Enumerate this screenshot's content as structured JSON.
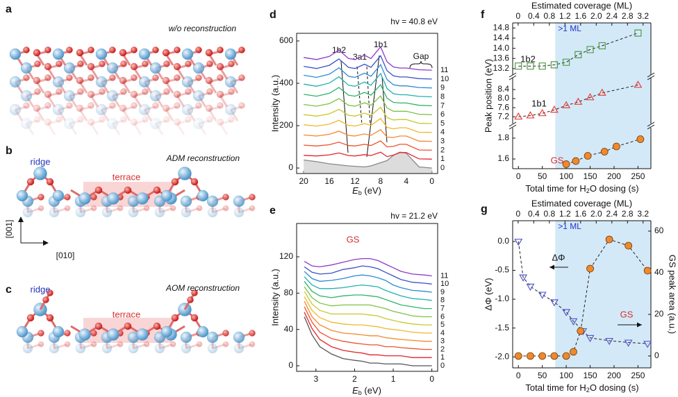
{
  "labels": [
    "a",
    "b",
    "c",
    "d",
    "e",
    "f",
    "g"
  ],
  "structures": [
    {
      "title": "w/o reconstruction"
    },
    {
      "title": "ADM reconstruction",
      "ridge": "ridge",
      "terrace": "terrace",
      "axes": [
        "[001]",
        "[010]"
      ]
    },
    {
      "title": "AOM reconstruction",
      "ridge": "ridge",
      "terrace": "terrace"
    }
  ],
  "chart_data": [
    {
      "type": "line",
      "annotation": "hv = 40.8 eV",
      "peaks": [
        "1b2",
        "3a1",
        "1b1",
        "Gap"
      ],
      "xlabel": [
        "E",
        "b",
        " (eV)"
      ],
      "ylabel": "Intensity (a.u.)",
      "x": [
        20,
        18,
        16,
        14.5,
        13,
        12,
        10.5,
        9.5,
        8,
        7,
        6,
        5,
        4,
        2,
        0
      ],
      "xlim": [
        21.1,
        -0.9
      ],
      "xticks": [
        20,
        16,
        12,
        8,
        4,
        0
      ],
      "ylim": [
        -26,
        636
      ],
      "yticks": [
        0,
        200,
        400,
        600
      ],
      "series": [
        {
          "name": "0",
          "color": "#888888",
          "fill": true,
          "values": [
            38,
            30,
            20,
            15,
            10,
            8,
            5,
            10,
            25,
            35,
            60,
            75,
            70,
            5,
            0
          ]
        },
        {
          "name": "1",
          "color": "#e3242b",
          "values": [
            60,
            57,
            62,
            71,
            59,
            57,
            63,
            59,
            75,
            54,
            61,
            73,
            73,
            43,
            42
          ]
        },
        {
          "name": "2",
          "color": "#f0502a",
          "values": [
            108,
            104,
            110,
            122,
            106,
            104,
            112,
            106,
            128,
            100,
            102,
            112,
            112,
            85,
            84
          ]
        },
        {
          "name": "3",
          "color": "#f5872a",
          "values": [
            156,
            151,
            159,
            174,
            154,
            151,
            161,
            154,
            181,
            146,
            144,
            151,
            151,
            127,
            126
          ]
        },
        {
          "name": "4",
          "color": "#f2b62a",
          "values": [
            204,
            198,
            207,
            225,
            201,
            198,
            210,
            201,
            234,
            192,
            185,
            190,
            190,
            169,
            168
          ]
        },
        {
          "name": "5",
          "color": "#c8c82a",
          "values": [
            252,
            245,
            256,
            277,
            249,
            245,
            259,
            249,
            287,
            238,
            227,
            229,
            229,
            211,
            210
          ]
        },
        {
          "name": "6",
          "color": "#7cc242",
          "values": [
            300,
            292,
            304,
            328,
            296,
            292,
            308,
            296,
            340,
            284,
            268,
            268,
            268,
            254,
            252
          ]
        },
        {
          "name": "7",
          "color": "#2db36a",
          "values": [
            348,
            339,
            353,
            380,
            344,
            339,
            357,
            344,
            393,
            330,
            310,
            307,
            307,
            296,
            294
          ]
        },
        {
          "name": "8",
          "color": "#20b0b0",
          "values": [
            396,
            386,
            401,
            431,
            391,
            386,
            406,
            391,
            446,
            376,
            351,
            346,
            346,
            338,
            336
          ]
        },
        {
          "name": "9",
          "color": "#2a8ad8",
          "values": [
            438,
            428,
            443,
            473,
            433,
            428,
            448,
            433,
            488,
            418,
            393,
            388,
            388,
            380,
            378
          ]
        },
        {
          "name": "10",
          "color": "#3a50c8",
          "values": [
            480,
            470,
            485,
            515,
            475,
            470,
            490,
            475,
            530,
            460,
            435,
            430,
            430,
            422,
            420
          ]
        },
        {
          "name": "11",
          "color": "#8a3ac8",
          "values": [
            522,
            512,
            527,
            557,
            517,
            512,
            532,
            517,
            572,
            502,
            477,
            472,
            472,
            464,
            462
          ]
        }
      ]
    },
    {
      "type": "line",
      "annotation": "hv = 21.2 eV",
      "peaks": [
        "GS"
      ],
      "xlabel": [
        "E",
        "b",
        " (eV)"
      ],
      "ylabel": "Intensity (a.u.)",
      "x": [
        3.3,
        3.1,
        2.9,
        2.6,
        2.3,
        2,
        1.8,
        1.6,
        1.4,
        1.2,
        1,
        0.8,
        0.5,
        0.2,
        0
      ],
      "xlim": [
        3.5,
        -0.15
      ],
      "xticks": [
        3,
        2,
        1,
        0
      ],
      "ylim": [
        -6.1,
        156.7
      ],
      "yticks": [
        0,
        40,
        80,
        120
      ],
      "series": [
        {
          "name": "0",
          "color": "#555555",
          "values": [
            54,
            34,
            21,
            13,
            8,
            6,
            5,
            3,
            3,
            2,
            2,
            2,
            0,
            0,
            0
          ]
        },
        {
          "name": "1",
          "color": "#e3242b",
          "values": [
            59,
            41,
            29,
            21,
            17,
            15,
            14,
            12,
            12,
            11,
            11,
            11,
            9,
            9,
            9
          ]
        },
        {
          "name": "2",
          "color": "#f0502a",
          "values": [
            65,
            48,
            37,
            30,
            27,
            25,
            24,
            23,
            23,
            21,
            21,
            20,
            19,
            18,
            18
          ]
        },
        {
          "name": "3",
          "color": "#f5872a",
          "values": [
            71,
            54,
            45,
            39,
            36,
            35,
            34,
            33,
            33,
            31,
            30,
            29,
            28,
            27,
            27
          ]
        },
        {
          "name": "4",
          "color": "#f2b62a",
          "values": [
            76,
            61,
            53,
            48,
            46,
            45,
            45,
            44,
            43,
            41,
            40,
            39,
            37,
            36,
            36
          ]
        },
        {
          "name": "5",
          "color": "#c8c82a",
          "values": [
            82,
            68,
            61,
            57,
            57,
            57,
            57,
            56,
            55,
            52,
            50,
            48,
            46,
            45,
            45
          ]
        },
        {
          "name": "6",
          "color": "#7cc242",
          "values": [
            87,
            75,
            69,
            66,
            67,
            67,
            67,
            67,
            65,
            63,
            60,
            58,
            55,
            54,
            54
          ]
        },
        {
          "name": "7",
          "color": "#2db36a",
          "values": [
            93,
            82,
            77,
            75,
            77,
            78,
            78,
            77,
            76,
            73,
            70,
            67,
            65,
            63,
            63
          ]
        },
        {
          "name": "8",
          "color": "#20b0b0",
          "values": [
            98,
            89,
            85,
            85,
            86,
            88,
            89,
            88,
            87,
            83,
            80,
            77,
            74,
            73,
            72
          ]
        },
        {
          "name": "9",
          "color": "#2a8ad8",
          "values": [
            104,
            96,
            93,
            94,
            96,
            99,
            100,
            99,
            97,
            94,
            89,
            86,
            83,
            82,
            81
          ]
        },
        {
          "name": "10",
          "color": "#3a50c8",
          "values": [
            109,
            103,
            101,
            102,
            106,
            108,
            110,
            109,
            107,
            103,
            99,
            95,
            92,
            91,
            90
          ]
        },
        {
          "name": "11",
          "color": "#8a3ac8",
          "values": [
            115,
            110,
            109,
            111,
            114,
            117,
            118,
            118,
            116,
            112,
            108,
            104,
            101,
            100,
            99
          ]
        }
      ]
    },
    {
      "type": "scatter",
      "x2label": "Estimated coverage (ML)",
      "xlabel": [
        "Total time for H",
        "2",
        "O dosing (s)"
      ],
      "ylabel": "Peak position (eV)",
      "xlim": [
        -12,
        277
      ],
      "xticks": [
        0,
        50,
        100,
        150,
        200,
        250
      ],
      "x2lim": [
        -0.14,
        3.4
      ],
      "x2ticks": [
        0,
        0.4,
        0.8,
        1.2,
        1.6,
        {
          "value": 2,
          "label": "2.0"
        },
        2.4,
        2.8,
        3.2
      ],
      "shade": {
        "label": ">1 ML",
        "from": 77
      },
      "panels": [
        {
          "ylim": [
            12.95,
            15.0
          ],
          "yticks": [
            13.2,
            13.6,
            {
              "value": 14,
              "label": "14.0"
            },
            14.4,
            14.8
          ]
        },
        {
          "ylim": [
            6.9,
            8.92
          ],
          "yticks": [
            7.2,
            7.6,
            {
              "value": 8,
              "label": "8.0"
            },
            8.4
          ]
        },
        {
          "ylim": [
            1.507,
            1.9
          ],
          "yticks": [
            1.6,
            1.8
          ]
        }
      ],
      "series": [
        {
          "name": "1b2",
          "color": "#4f9a48",
          "marker": "square",
          "panel": 0,
          "x": [
            0,
            25,
            50,
            75,
            100,
            125,
            150,
            175,
            250
          ],
          "values": [
            13.3,
            13.3,
            13.3,
            13.35,
            13.45,
            13.75,
            13.95,
            14.1,
            14.6
          ]
        },
        {
          "name": "1b1",
          "color": "#e8403a",
          "marker": "triangle",
          "panel": 1,
          "x": [
            0,
            25,
            50,
            75,
            100,
            125,
            150,
            175,
            250
          ],
          "values": [
            7.2,
            7.25,
            7.35,
            7.5,
            7.7,
            7.85,
            8.05,
            8.25,
            8.6
          ]
        },
        {
          "name": "GS",
          "color": "#f0892a",
          "marker": "circle",
          "panel": 2,
          "x": [
            100,
            120,
            145,
            180,
            205,
            255
          ],
          "values": [
            1.55,
            1.58,
            1.63,
            1.67,
            1.72,
            1.79
          ]
        }
      ]
    },
    {
      "type": "scatter",
      "x2label": "Estimated coverage (ML)",
      "xlabel": [
        "Total time for H",
        "2",
        "O dosing (s)"
      ],
      "ylabel": "ΔΦ (eV)",
      "y2label": "GS peak area (a.u.)",
      "xlim": [
        -12,
        277
      ],
      "xticks": [
        0,
        50,
        100,
        150,
        200,
        250
      ],
      "x2lim": [
        -0.14,
        3.4
      ],
      "x2ticks": [
        0,
        0.4,
        0.8,
        1.2,
        1.6,
        {
          "value": 2,
          "label": "2.0"
        },
        2.4,
        2.8,
        3.2
      ],
      "shade": {
        "label": ">1 ML",
        "from": 77
      },
      "ylim": [
        -2.19,
        0.36
      ],
      "yticks": [
        {
          "value": 0,
          "label": "0.0"
        },
        -0.5,
        {
          "value": -1,
          "label": "-1.0"
        },
        -1.5,
        {
          "value": -2,
          "label": "-2.0"
        }
      ],
      "y2lim": [
        -5.7,
        65
      ],
      "y2ticks": [
        0,
        20,
        40,
        60
      ],
      "series": [
        {
          "name": "ΔΦ",
          "color": "#5a5ad0",
          "marker": "triangle-down",
          "x": [
            0,
            10,
            25,
            50,
            75,
            100,
            115,
            135,
            150,
            190,
            230,
            270
          ],
          "values": [
            0,
            -0.62,
            -0.78,
            -0.92,
            -1.05,
            -1.22,
            -1.38,
            -1.55,
            -1.67,
            -1.72,
            -1.75,
            -1.77
          ]
        },
        {
          "name": "GS",
          "color": "#f0892a",
          "marker": "circle",
          "axis": "y2",
          "x": [
            0,
            25,
            50,
            75,
            100,
            115,
            130,
            150,
            190,
            230,
            270
          ],
          "values": [
            0,
            0,
            0,
            0,
            0,
            2,
            12,
            42,
            56,
            53,
            41
          ]
        }
      ]
    }
  ]
}
